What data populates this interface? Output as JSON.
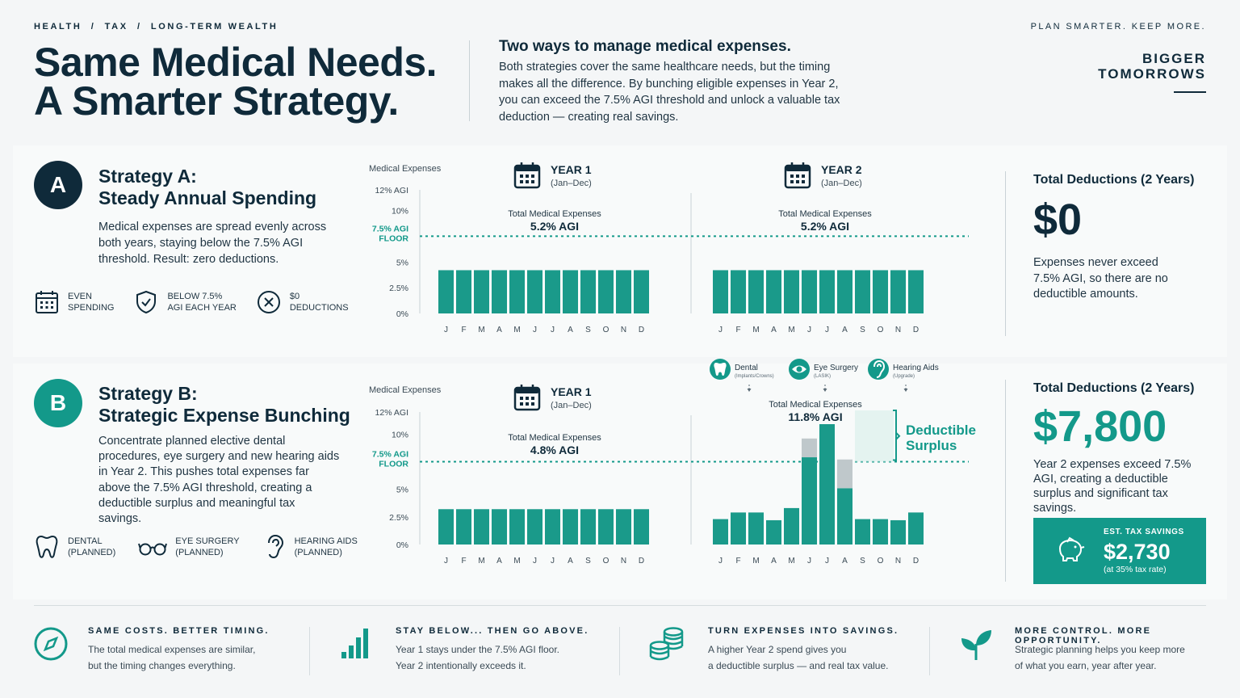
{
  "header": {
    "breadcrumb": "HEALTH  /  TAX  /  LONG-TERM WEALTH",
    "title_line1": "Same Medical Needs.",
    "title_line2": "A Smarter Strategy.",
    "intro_title": "Two ways to manage medical expenses.",
    "intro_body": "Both strategies cover the same healthcare needs, but the timing makes all the difference. By bunching eligible expenses in Year 2, you can exceed the 7.5% AGI threshold and unlock a valuable tax deduction — creating real savings.",
    "tagline": "PLAN SMARTER. KEEP MORE.",
    "brand_line1": "BIGGER",
    "brand_line2": "TOMORROWS"
  },
  "strategy_a": {
    "badge": "A",
    "title_line1": "Strategy A:",
    "title_line2": "Steady Annual Spending",
    "description": "Medical expenses are spread evenly across both years, staying below the 7.5% AGI threshold. Result: zero deductions.",
    "features": [
      {
        "icon": "calendar-icon",
        "label_line1": "EVEN",
        "label_line2": "SPENDING"
      },
      {
        "icon": "shield-check-icon",
        "label_line1": "BELOW 7.5%",
        "label_line2": "AGI EACH YEAR"
      },
      {
        "icon": "x-circle-icon",
        "label_line1": "$0",
        "label_line2": "DEDUCTIONS"
      }
    ],
    "summary_title": "Total Deductions (2 Years)",
    "summary_value": "$0",
    "summary_body": "Expenses never exceed 7.5% AGI, so there are no deductible amounts."
  },
  "strategy_b": {
    "badge": "B",
    "title_line1": "Strategy B:",
    "title_line2": "Strategic Expense Bunching",
    "description": "Concentrate planned elective dental procedures, eye surgery and new hearing aids in Year 2. This pushes total expenses far above the 7.5% AGI threshold, creating a deductible surplus and meaningful tax savings.",
    "features": [
      {
        "icon": "tooth-icon",
        "label_line1": "DENTAL",
        "label_line2": "(PLANNED)"
      },
      {
        "icon": "glasses-icon",
        "label_line1": "EYE SURGERY",
        "label_line2": "(PLANNED)"
      },
      {
        "icon": "hearing-icon",
        "label_line1": "HEARING AIDS",
        "label_line2": "(PLANNED)"
      }
    ],
    "summary_title": "Total Deductions (2 Years)",
    "summary_value": "$7,800",
    "summary_body": "Year 2 expenses exceed 7.5% AGI, creating a deductible surplus and significant tax savings.",
    "savings_label": "EST. TAX SAVINGS",
    "savings_value": "$2,730",
    "savings_note": "(at 35% tax rate)"
  },
  "chart_data": [
    {
      "type": "bar",
      "ylabel": "Medical Expenses",
      "y_ticks": [
        "12% AGI",
        "10%",
        "7.5% AGI FLOOR",
        "5%",
        "2.5%",
        "0%"
      ],
      "threshold": {
        "value": 7.5,
        "label_line1": "7.5% AGI",
        "label_line2": "FLOOR"
      },
      "ylim": [
        0,
        12
      ],
      "categories": [
        "J",
        "F",
        "M",
        "A",
        "M",
        "J",
        "J",
        "A",
        "S",
        "O",
        "N",
        "D"
      ],
      "panels": [
        {
          "title": "YEAR 1",
          "subtitle": "(Jan–Dec)",
          "total_label": "Total Medical Expenses",
          "total_value": "5.2% AGI",
          "values": [
            4.2,
            4.2,
            4.2,
            4.2,
            4.2,
            4.2,
            4.2,
            4.2,
            4.2,
            4.2,
            4.2,
            4.2
          ]
        },
        {
          "title": "YEAR 2",
          "subtitle": "(Jan–Dec)",
          "total_label": "Total Medical Expenses",
          "total_value": "5.2% AGI",
          "values": [
            4.2,
            4.2,
            4.2,
            4.2,
            4.2,
            4.2,
            4.2,
            4.2,
            4.2,
            4.2,
            4.2,
            4.2
          ]
        }
      ]
    },
    {
      "type": "bar",
      "ylabel": "Medical Expenses",
      "y_ticks": [
        "12% AGI",
        "10%",
        "7.5% AGI FLOOR",
        "5%",
        "2.5%",
        "0%"
      ],
      "threshold": {
        "value": 7.5,
        "label_line1": "7.5% AGI",
        "label_line2": "FLOOR"
      },
      "ylim": [
        0,
        12
      ],
      "categories": [
        "J",
        "F",
        "M",
        "A",
        "M",
        "J",
        "J",
        "A",
        "S",
        "O",
        "N",
        "D"
      ],
      "panels": [
        {
          "title": "YEAR 1",
          "subtitle": "(Jan–Dec)",
          "total_label": "Total Medical Expenses",
          "total_value": "4.8% AGI",
          "values": [
            3.2,
            3.2,
            3.2,
            3.2,
            3.2,
            3.2,
            3.2,
            3.2,
            3.2,
            3.2,
            3.2,
            3.2
          ]
        },
        {
          "title": "",
          "subtitle": "",
          "total_label": "Total Medical Expenses",
          "total_value": "11.8% AGI",
          "values": [
            2.3,
            2.9,
            2.9,
            2.2,
            3.3,
            7.9,
            10.9,
            5.1,
            2.3,
            2.3,
            2.2,
            2.9
          ],
          "stacked_extra": [
            0,
            0,
            0,
            0,
            0,
            1.7,
            0,
            2.6,
            0,
            0,
            0,
            0
          ]
        }
      ],
      "callouts": [
        {
          "icon": "tooth-icon",
          "label": "Dental",
          "sub": "(Implants/Crowns)"
        },
        {
          "icon": "eye-icon",
          "label": "Eye Surgery",
          "sub": "(LASIK)"
        },
        {
          "icon": "hearing-icon",
          "label": "Hearing Aids",
          "sub": "(Upgrade)"
        }
      ],
      "annotation_line1": "Deductible",
      "annotation_line2": "Surplus"
    }
  ],
  "footer": [
    {
      "icon": "compass-icon",
      "title": "SAME COSTS. BETTER TIMING.",
      "line1": "The total medical expenses are similar,",
      "line2": "but the timing changes everything."
    },
    {
      "icon": "bar-chart-icon",
      "title": "STAY BELOW... THEN GO ABOVE.",
      "line1": "Year 1 stays under the 7.5% AGI floor.",
      "line2": "Year 2 intentionally exceeds it."
    },
    {
      "icon": "coins-icon",
      "title": "TURN EXPENSES INTO SAVINGS.",
      "line1": "A higher Year 2 spend gives you",
      "line2": "a deductible surplus — and real tax value."
    },
    {
      "icon": "sprout-icon",
      "title": "MORE CONTROL. MORE OPPORTUNITY.",
      "line1": "Strategic planning helps you keep more",
      "line2": "of what you earn, year after year."
    }
  ],
  "colors": {
    "navy": "#0f2a3a",
    "teal": "#13998a",
    "teal_bar": "#1a9a8a",
    "grey_stack": "#bfc8cb"
  }
}
